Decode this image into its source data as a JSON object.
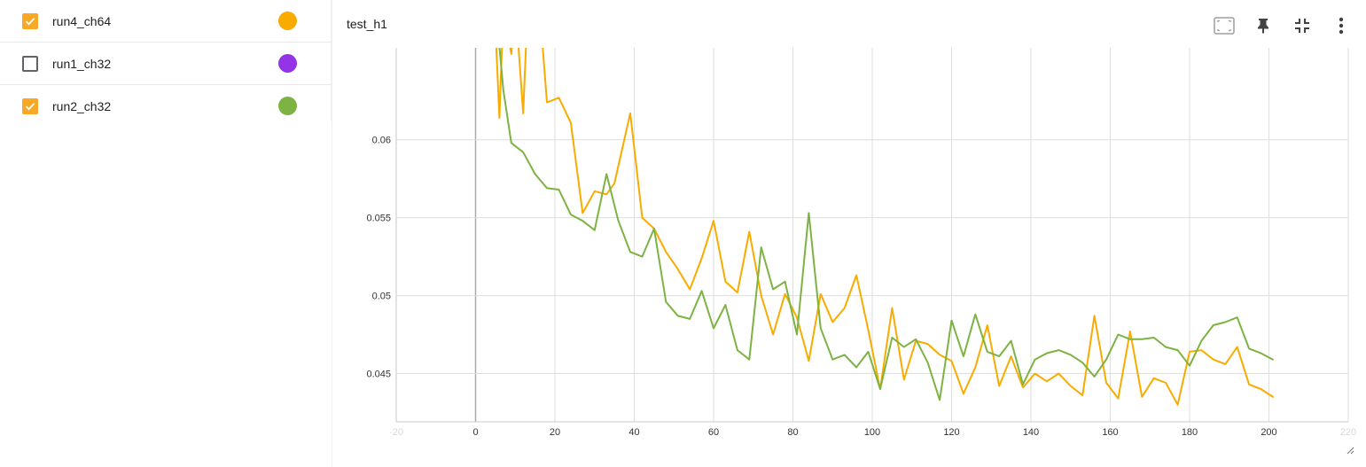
{
  "runs": [
    {
      "label": "run4_ch64",
      "checked": true,
      "color": "#f9ab00"
    },
    {
      "label": "run1_ch32",
      "checked": false,
      "color": "#9334e6"
    },
    {
      "label": "run2_ch32",
      "checked": true,
      "color": "#7cb342"
    }
  ],
  "card": {
    "title": "test_h1"
  },
  "toolbar": {
    "fit_icon": "fit-domain-icon",
    "pin_icon": "pin-icon",
    "collapse_icon": "collapse-icon",
    "more_icon": "more-vert-icon"
  },
  "chart_data": {
    "type": "line",
    "title": "test_h1",
    "xlabel": "",
    "ylabel": "",
    "xlim": [
      -20,
      220
    ],
    "ylim": [
      0.0419,
      0.0659
    ],
    "grid": true,
    "x_ticks": [
      -20,
      0,
      20,
      40,
      60,
      80,
      100,
      120,
      140,
      160,
      180,
      200,
      220
    ],
    "x_tick_labels": [
      "-20",
      "0",
      "20",
      "40",
      "60",
      "80",
      "100",
      "120",
      "140",
      "160",
      "180",
      "200",
      "220"
    ],
    "y_ticks": [
      0.045,
      0.05,
      0.055,
      0.06
    ],
    "y_tick_labels": [
      "0.045",
      "0.05",
      "0.055",
      "0.06"
    ],
    "series": [
      {
        "color": "#f9ab00",
        "x": [
          5,
          6,
          7,
          9,
          10,
          12,
          13,
          15,
          16,
          18,
          19,
          21,
          24,
          27,
          30,
          33,
          35,
          39,
          42,
          45,
          48,
          51,
          54,
          57,
          60,
          63,
          66,
          69,
          72,
          75,
          78,
          81,
          84,
          87,
          90,
          93,
          96,
          99,
          102,
          105,
          108,
          111,
          114,
          117,
          120,
          123,
          126,
          129,
          132,
          135,
          138,
          141,
          144,
          147,
          150,
          153,
          156,
          159,
          162,
          165,
          168,
          171,
          174,
          177,
          180,
          183,
          186,
          189,
          192,
          195,
          198,
          201
        ],
        "y": [
          0.0672,
          0.0614,
          0.0685,
          0.0655,
          0.0689,
          0.0617,
          0.0678,
          0.0668,
          0.069,
          0.0624,
          0.0625,
          0.0627,
          0.0611,
          0.0553,
          0.0567,
          0.0565,
          0.0572,
          0.0617,
          0.055,
          0.0543,
          0.0528,
          0.0517,
          0.0504,
          0.0524,
          0.0548,
          0.0509,
          0.0502,
          0.0541,
          0.05,
          0.0475,
          0.0501,
          0.0486,
          0.0458,
          0.0501,
          0.0483,
          0.0492,
          0.0513,
          0.0478,
          0.044,
          0.0492,
          0.0446,
          0.0471,
          0.0469,
          0.0462,
          0.0458,
          0.0437,
          0.0454,
          0.0481,
          0.0442,
          0.0461,
          0.0441,
          0.045,
          0.0445,
          0.045,
          0.0442,
          0.0436,
          0.0487,
          0.0444,
          0.0434,
          0.0477,
          0.0435,
          0.0447,
          0.0444,
          0.043,
          0.0464,
          0.0465,
          0.0459,
          0.0456,
          0.0467,
          0.0443,
          0.044,
          0.0435
        ]
      },
      {
        "color": "#7cb342",
        "x": [
          5,
          7,
          9,
          12,
          15,
          18,
          21,
          24,
          27,
          30,
          33,
          36,
          39,
          42,
          45,
          48,
          51,
          54,
          57,
          60,
          63,
          66,
          69,
          72,
          75,
          78,
          81,
          84,
          87,
          90,
          93,
          96,
          99,
          102,
          105,
          108,
          111,
          114,
          117,
          120,
          123,
          126,
          129,
          132,
          135,
          138,
          141,
          144,
          147,
          150,
          153,
          156,
          159,
          162,
          165,
          168,
          171,
          174,
          177,
          180,
          183,
          186,
          189,
          192,
          195,
          198,
          201
        ],
        "y": [
          0.0688,
          0.0632,
          0.0598,
          0.0592,
          0.0578,
          0.0569,
          0.0568,
          0.0552,
          0.0548,
          0.0542,
          0.0578,
          0.0548,
          0.0528,
          0.0525,
          0.0543,
          0.0496,
          0.0487,
          0.0485,
          0.0503,
          0.0479,
          0.0494,
          0.0465,
          0.0459,
          0.0531,
          0.0504,
          0.0509,
          0.0475,
          0.0553,
          0.0479,
          0.0459,
          0.0462,
          0.0454,
          0.0464,
          0.044,
          0.0473,
          0.0467,
          0.0472,
          0.0457,
          0.0433,
          0.0484,
          0.0461,
          0.0488,
          0.0464,
          0.0461,
          0.0471,
          0.0443,
          0.0459,
          0.0463,
          0.0465,
          0.0462,
          0.0457,
          0.0448,
          0.0459,
          0.0475,
          0.0472,
          0.0472,
          0.0473,
          0.0467,
          0.0465,
          0.0455,
          0.0471,
          0.0481,
          0.0483,
          0.0486,
          0.0466,
          0.0463,
          0.0459
        ]
      }
    ]
  }
}
